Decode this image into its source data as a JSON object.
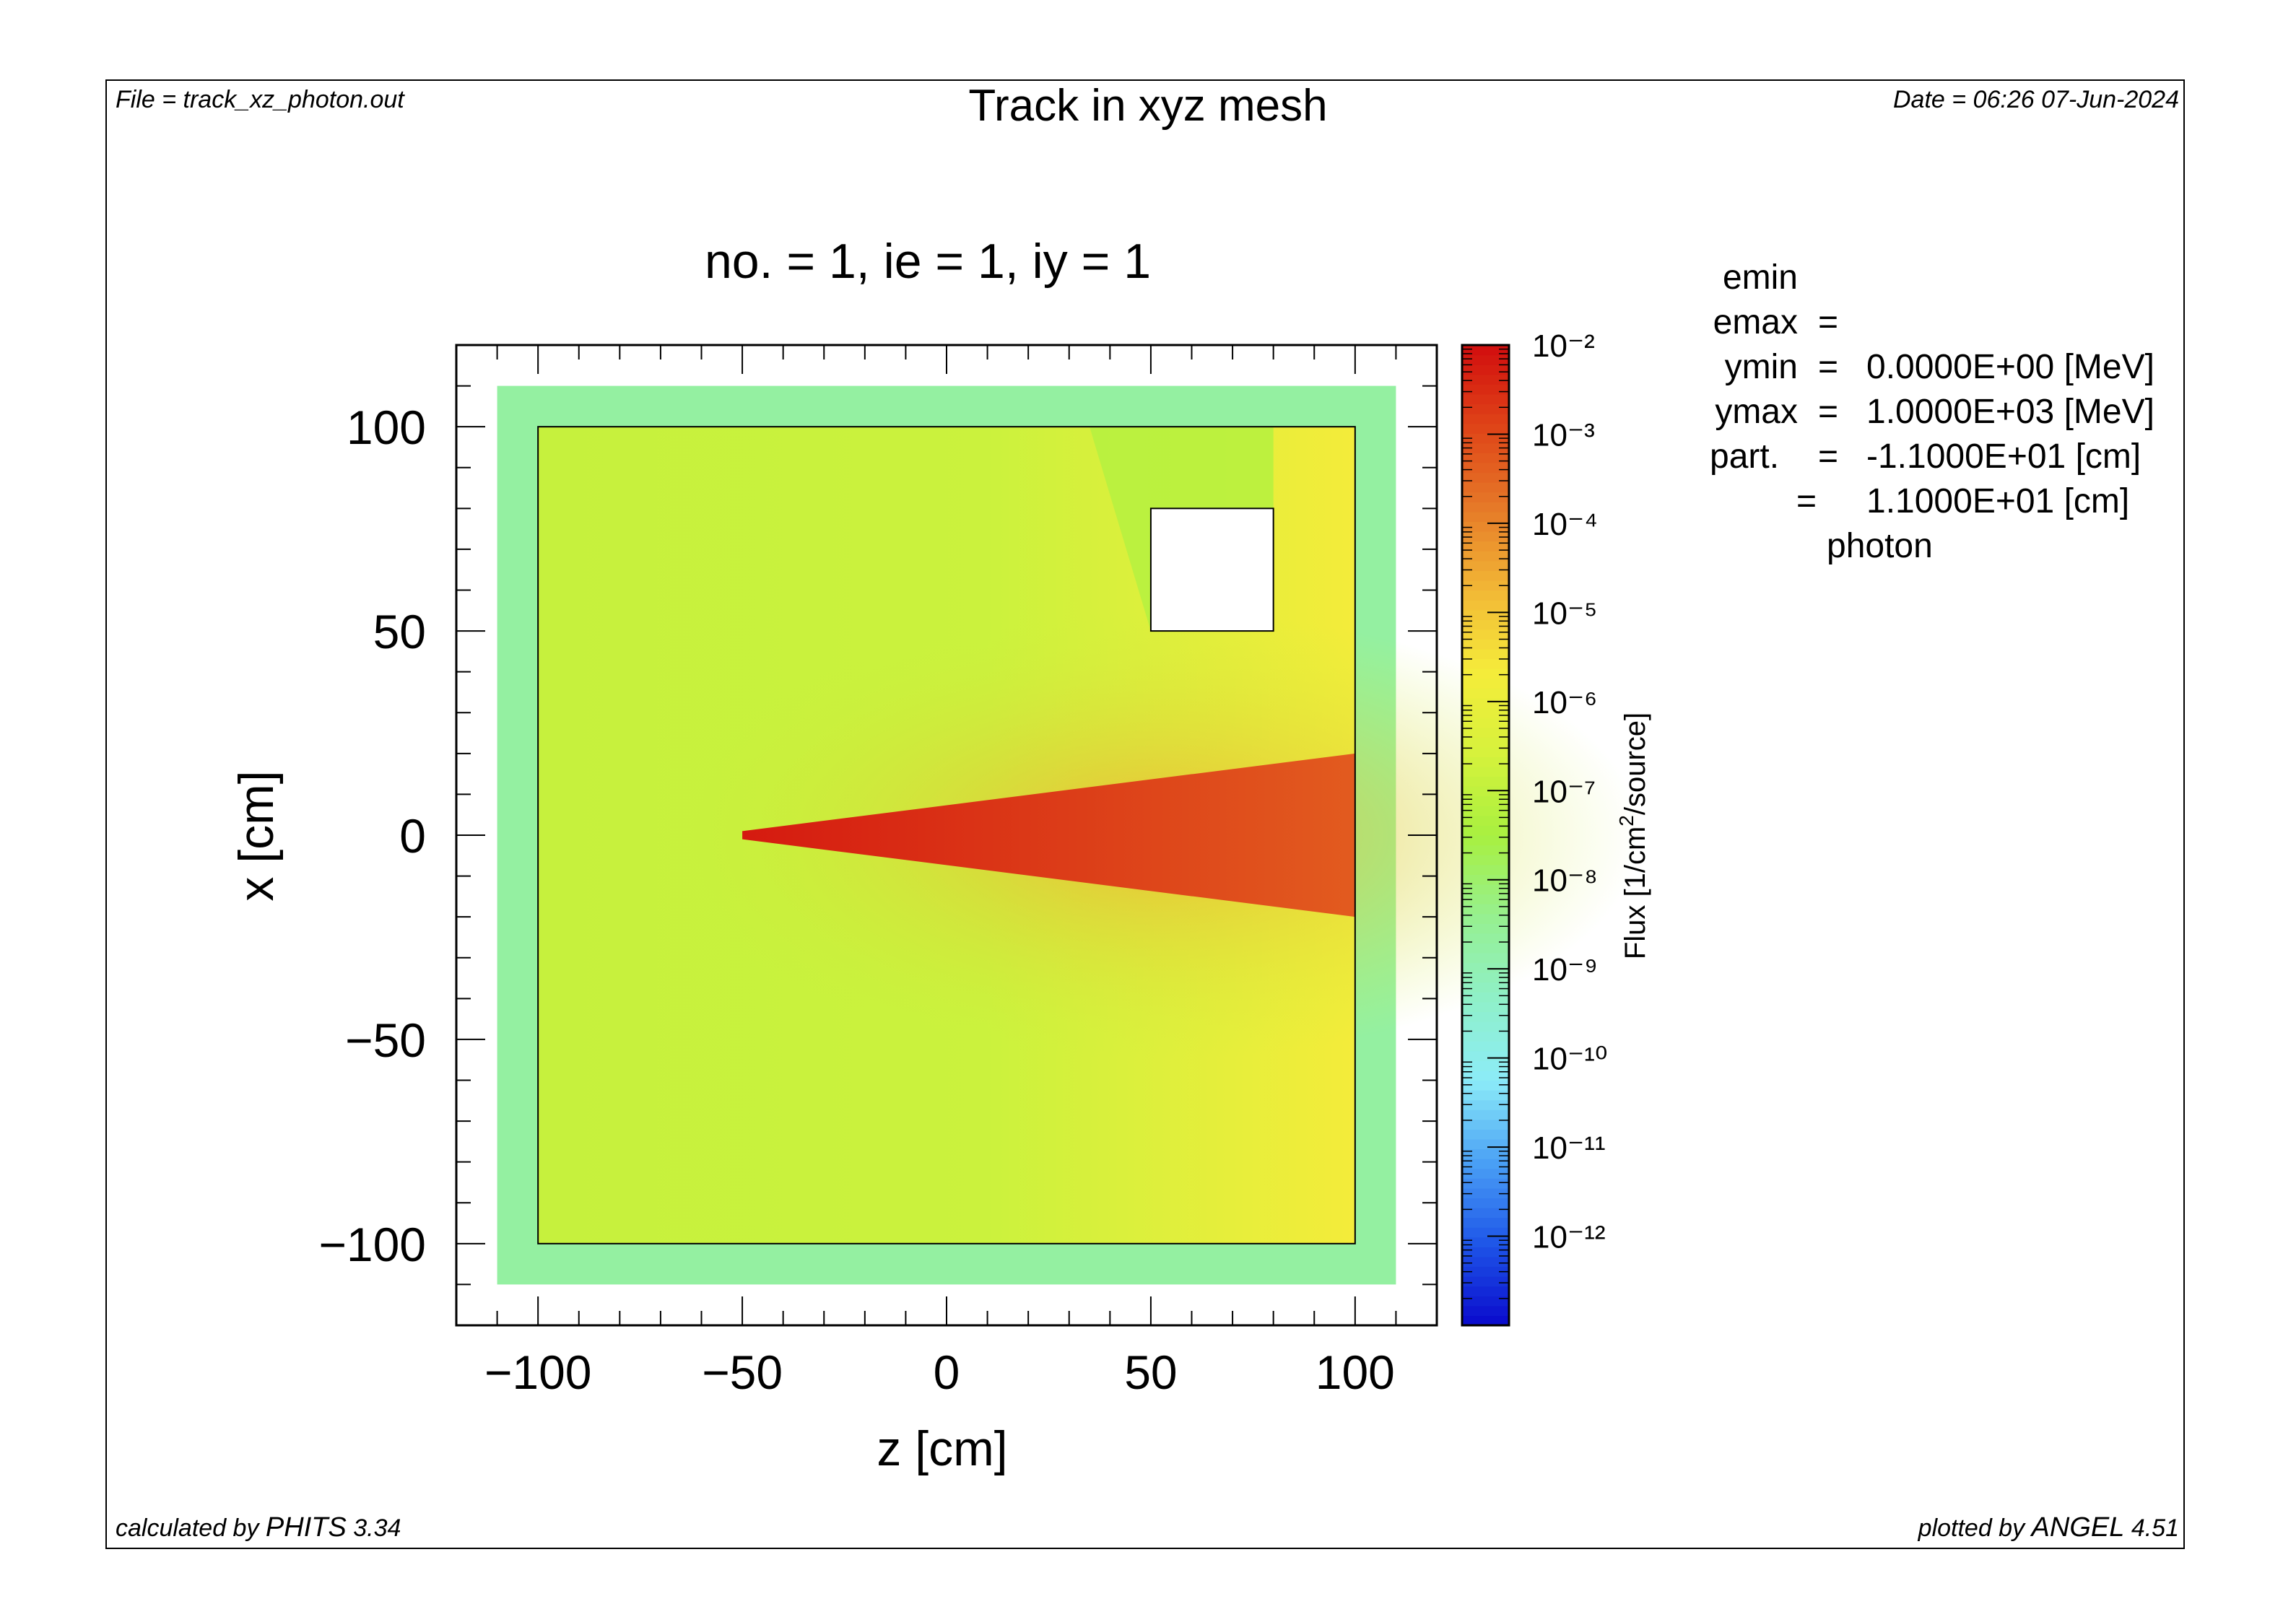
{
  "header": {
    "file_label": "File = track_xz_photon.out",
    "title": "Track in xyz mesh",
    "date_label": "Date = 06:26 07-Jun-2024"
  },
  "subtitle": "no. =  1,  ie =  1,  iy =  1",
  "params": [
    {
      "key": "emin",
      "eq": "=",
      "value": "0.0000E+00 [MeV]"
    },
    {
      "key": "emax",
      "eq": "=",
      "value": "1.0000E+03 [MeV]"
    },
    {
      "key": "ymin",
      "eq": "=",
      "value": "-1.1000E+01 [cm]"
    },
    {
      "key": "ymax",
      "eq": "=",
      "value": "1.1000E+01 [cm]"
    },
    {
      "key": "part.",
      "eq": "=",
      "value": "photon"
    }
  ],
  "footer": {
    "calc_prefix": "calculated by ",
    "calc_code": "PHITS",
    "calc_version": " 3.34",
    "plot_prefix": "plotted by ",
    "plot_code": "ANGEL",
    "plot_version": " 4.51"
  },
  "colors": {
    "frame": "#000000",
    "beam_core": "#dd1a00",
    "beam": "#e6731f",
    "background_fill": "#a8f040",
    "halo": "#9cf0c0"
  },
  "chart_data": {
    "type": "heatmap",
    "xlabel": "z [cm]",
    "ylabel": "x [cm]",
    "xlim": [
      -120,
      120
    ],
    "ylim": [
      -120,
      120
    ],
    "x_ticks": [
      -100,
      -50,
      0,
      50,
      100
    ],
    "x_tick_labels": [
      "−100",
      "−50",
      "0",
      "50",
      "100"
    ],
    "y_ticks": [
      -100,
      -50,
      0,
      50,
      100
    ],
    "y_tick_labels": [
      "−100",
      "−50",
      "0",
      "50",
      "100"
    ],
    "log_scale_colorbar": true,
    "colorbar": {
      "label": "Flux [1/cm²/source]",
      "label_main": "Flux [1/cm",
      "label_sup": "2",
      "label_tail": "/source]",
      "min_exp": -13,
      "max_exp": -2,
      "tick_exponents": [
        -2,
        -3,
        -4,
        -5,
        -6,
        -7,
        -8,
        -9,
        -10,
        -11,
        -12
      ],
      "tick_labels": [
        "10⁻²",
        "10⁻³",
        "10⁻⁴",
        "10⁻⁵",
        "10⁻⁶",
        "10⁻⁷",
        "10⁻⁸",
        "10⁻⁹",
        "10⁻¹⁰",
        "10⁻¹¹",
        "10⁻¹²"
      ],
      "colors": [
        "#0a0acc",
        "#1e55e8",
        "#4aa0f5",
        "#8cecf8",
        "#8ff0c8",
        "#96f090",
        "#a8f040",
        "#d6f23c",
        "#f5ec3a",
        "#f2b836",
        "#e67a28",
        "#df4418",
        "#d20e0e"
      ]
    },
    "regions": [
      {
        "name": "halo",
        "z": [
          -110,
          110
        ],
        "x": [
          -110,
          110
        ],
        "log_flux": -8.7
      },
      {
        "name": "body",
        "z": [
          -100,
          100
        ],
        "x": [
          -100,
          100
        ],
        "log_flux": -6.8
      },
      {
        "name": "cavity",
        "z": [
          50,
          80
        ],
        "x": [
          50,
          80
        ],
        "log_flux": null
      },
      {
        "name": "beam_cone",
        "apex_z": -50,
        "end_z": 100,
        "end_half_width": 20,
        "log_flux_start": -2.2,
        "log_flux_end": -3.3
      }
    ],
    "outlines": [
      {
        "name": "body-outline",
        "z": [
          -100,
          100
        ],
        "x": [
          -100,
          100
        ]
      },
      {
        "name": "cavity-outline",
        "z": [
          50,
          80
        ],
        "x": [
          50,
          80
        ]
      }
    ]
  }
}
